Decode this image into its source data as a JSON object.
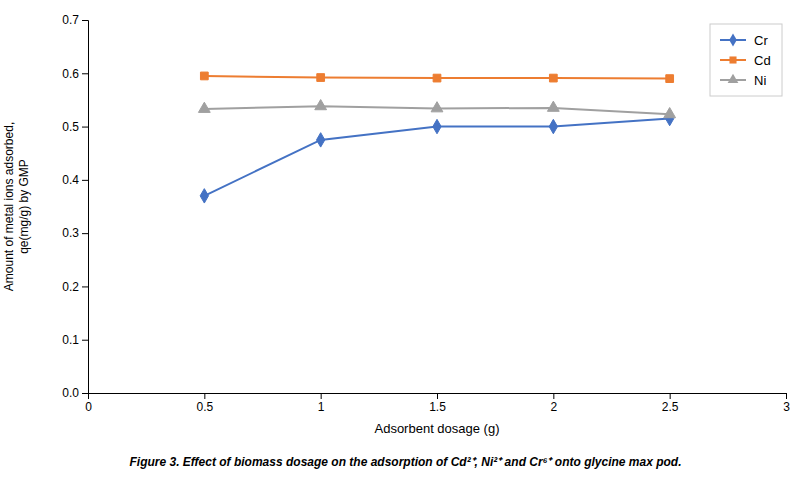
{
  "chart_data": {
    "type": "line",
    "caption": "Figure 3. Effect of biomass dosage on the adsorption of Cd²⁺, Ni²⁺ and Cr⁶⁺ onto glycine max pod.",
    "xlabel": "Adsorbent dosage (g)",
    "ylabel": "Amount of metal ions adsorbed,\nqe(mg/g) by GMP",
    "x": [
      0.5,
      1.0,
      1.5,
      2.0,
      2.5
    ],
    "series": [
      {
        "name": "Cr",
        "color": "#4472C4",
        "marker": "diamond",
        "values": [
          0.37,
          0.475,
          0.5,
          0.5,
          0.515
        ]
      },
      {
        "name": "Cd",
        "color": "#ED7D31",
        "marker": "square",
        "values": [
          0.595,
          0.592,
          0.591,
          0.591,
          0.59
        ]
      },
      {
        "name": "Ni",
        "color": "#A0A0A0",
        "marker": "triangle",
        "values": [
          0.533,
          0.538,
          0.534,
          0.535,
          0.523
        ]
      }
    ],
    "xlim": [
      0,
      3
    ],
    "ylim": [
      0,
      0.7
    ],
    "xticks": [
      0,
      0.5,
      1,
      1.5,
      2,
      2.5,
      3
    ],
    "yticks": [
      {
        "value": 0,
        "label": "0.0"
      },
      0.1,
      0.2,
      0.3,
      0.4,
      0.5,
      0.6,
      0.7
    ],
    "grid": false,
    "legend": "upper right"
  }
}
